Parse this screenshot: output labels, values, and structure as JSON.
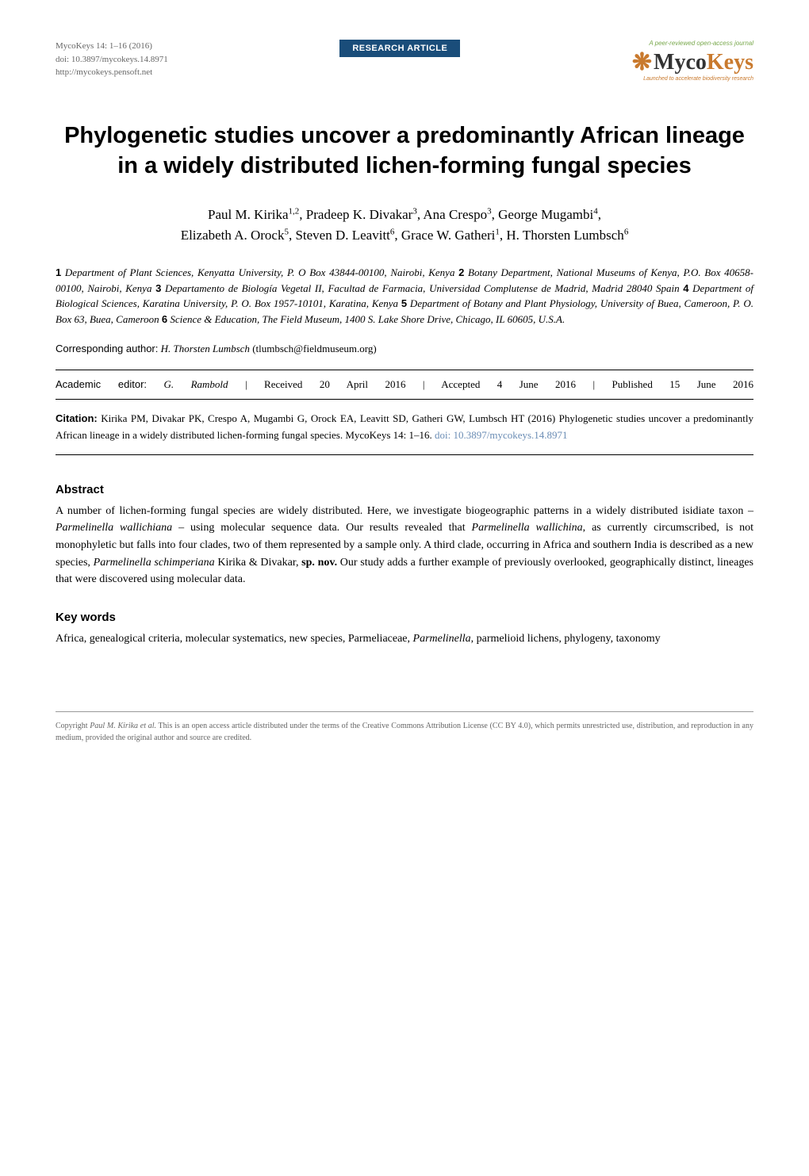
{
  "header": {
    "journal_citation": "MycoKeys 14: 1–16 (2016)",
    "doi": "doi: 10.3897/mycokeys.14.8971",
    "url": "http://mycokeys.pensoft.net",
    "badge_label": "RESEARCH ARTICLE",
    "peer_review": "A peer-reviewed open-access journal",
    "logo_prefix": "Myco",
    "logo_suffix": "Keys",
    "tagline": "Launched to accelerate biodiversity research"
  },
  "title": "Phylogenetic studies uncover a predominantly African lineage in a widely distributed lichen-forming fungal species",
  "authors_line1": "Paul M. Kirika",
  "authors_sup1": "1,2",
  "authors_sep1": ", Pradeep K. Divakar",
  "authors_sup2": "3",
  "authors_sep2": ", Ana Crespo",
  "authors_sup3": "3",
  "authors_sep3": ", George Mugambi",
  "authors_sup4": "4",
  "authors_sep4": ",",
  "authors_line2a": "Elizabeth A. Orock",
  "authors_sup5": "5",
  "authors_sep5": ", Steven D. Leavitt",
  "authors_sup6": "6",
  "authors_sep6": ", Grace W. Gatheri",
  "authors_sup7": "1",
  "authors_sep7": ", H. Thorsten Lumbsch",
  "authors_sup8": "6",
  "affiliations": {
    "n1": "1",
    "a1": " Department of Plant Sciences, Kenyatta University, P. O Box 43844-00100, Nairobi, Kenya ",
    "n2": "2",
    "a2": " Botany Department, National Museums of Kenya, P.O. Box 40658-00100, Nairobi, Kenya ",
    "n3": "3",
    "a3": " Departamento de Biología Vegetal II, Facultad de Farmacia, Universidad Complutense de Madrid, Madrid 28040 Spain ",
    "n4": "4",
    "a4": " Department of Biological Sciences, Karatina University, P. O. Box 1957-10101, Karatina, Kenya ",
    "n5": "5",
    "a5": " Department of Botany and Plant Physiology, University of Buea, Cameroon, P. O. Box 63, Buea, Cameroon ",
    "n6": "6",
    "a6": " Science & Education, The Field Museum, 1400 S. Lake Shore Drive, Chicago, IL 60605, U.S.A."
  },
  "corresponding": {
    "label": "Corresponding author:",
    "name": " H. Thorsten Lumbsch ",
    "email": "(tlumbsch@fieldmuseum.org)"
  },
  "editor": {
    "label": "Academic editor:",
    "name": " G. Rambold ",
    "received": "  |   Received 20 April 2016",
    "accepted": "  |   Accepted 4 June 2016",
    "published": "  |   Published 15 June 2016"
  },
  "citation": {
    "label": "Citation:",
    "text": " Kirika PM, Divakar PK, Crespo A, Mugambi G, Orock EA, Leavitt SD, Gatheri GW, Lumbsch HT (2016) Phylogenetic studies uncover a predominantly African lineage in a widely distributed lichen-forming fungal species. MycoKeys 14: 1–16. ",
    "doi": "doi: 10.3897/mycokeys.14.8971"
  },
  "abstract": {
    "heading": "Abstract",
    "p1": "A number of lichen-forming fungal species are widely distributed. Here, we investigate biogeographic patterns in a widely distributed isidiate taxon – ",
    "i1": "Parmelinella wallichiana",
    "p2": " – using molecular sequence data. Our results revealed that ",
    "i2": "Parmelinella wallichina",
    "p3": ", as currently circumscribed, is not monophyletic but falls into four clades, two of them represented by a sample only. A third clade, occurring in Africa and southern India is described as a new species, ",
    "i3": "Parmelinella schimperiana",
    "p4": " Kirika & Divakar, ",
    "b1": "sp. nov.",
    "p5": " Our study adds a further example of previously overlooked, geographically distinct, lineages that were discovered using molecular data."
  },
  "keywords": {
    "heading": "Key words",
    "p1": "Africa, genealogical criteria, molecular systematics, new species, Parmeliaceae, ",
    "i1": "Parmelinella",
    "p2": ", parmelioid lichens, phylogeny, taxonomy"
  },
  "copyright": {
    "prefix": "Copyright ",
    "author": "Paul M. Kirika et al.",
    "text": " This is an open access article distributed under the terms of the Creative Commons Attribution License (CC BY 4.0), which permits unrestricted use, distribution, and reproduction in any medium, provided the original author and source are credited."
  }
}
